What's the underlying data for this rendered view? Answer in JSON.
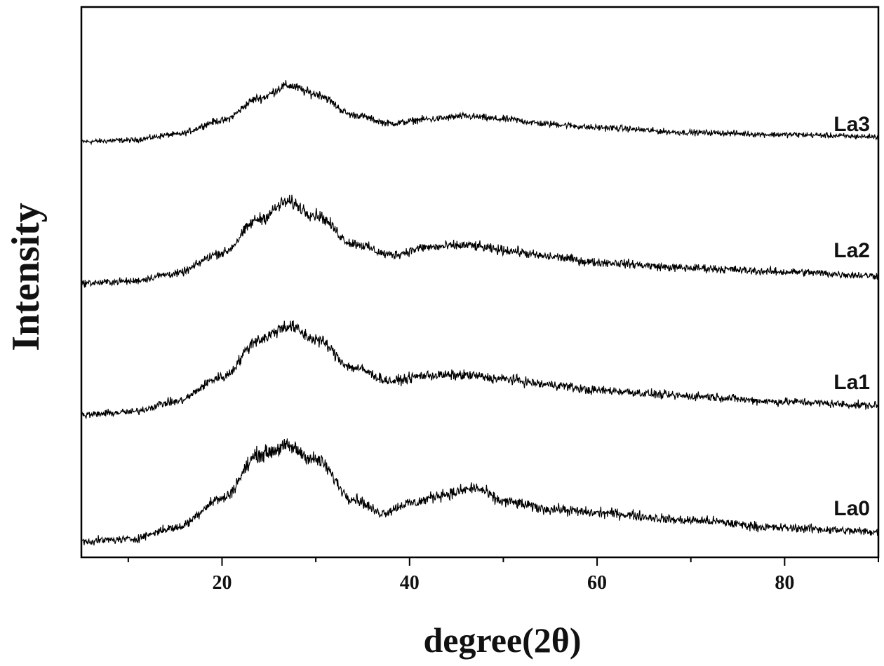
{
  "chart_data": {
    "type": "line",
    "title": "",
    "xlabel": "degree(2θ)",
    "ylabel": "Intensity",
    "xlim": [
      5,
      90
    ],
    "x_ticks_major": [
      20,
      40,
      60,
      80
    ],
    "x_ticks_minor": [
      10,
      30,
      50,
      70,
      90
    ],
    "y_ticks": false,
    "grid": false,
    "legend": "inline-right",
    "line_color": "#000000",
    "series": [
      {
        "name": "La3",
        "profile": [
          [
            5,
            0.0
          ],
          [
            10,
            0.02
          ],
          [
            15,
            0.1
          ],
          [
            20,
            0.3
          ],
          [
            24,
            0.62
          ],
          [
            27,
            0.8
          ],
          [
            30,
            0.68
          ],
          [
            34,
            0.38
          ],
          [
            38,
            0.26
          ],
          [
            42,
            0.32
          ],
          [
            46,
            0.36
          ],
          [
            50,
            0.32
          ],
          [
            55,
            0.25
          ],
          [
            60,
            0.2
          ],
          [
            70,
            0.13
          ],
          [
            80,
            0.1
          ],
          [
            90,
            0.07
          ]
        ],
        "noise": 0.1
      },
      {
        "name": "La2",
        "profile": [
          [
            5,
            0.0
          ],
          [
            10,
            0.02
          ],
          [
            15,
            0.1
          ],
          [
            20,
            0.32
          ],
          [
            24,
            0.68
          ],
          [
            27,
            0.86
          ],
          [
            30,
            0.72
          ],
          [
            34,
            0.42
          ],
          [
            38,
            0.3
          ],
          [
            42,
            0.38
          ],
          [
            46,
            0.4
          ],
          [
            50,
            0.35
          ],
          [
            55,
            0.28
          ],
          [
            60,
            0.22
          ],
          [
            70,
            0.16
          ],
          [
            80,
            0.12
          ],
          [
            90,
            0.08
          ]
        ],
        "noise": 0.1
      },
      {
        "name": "La1",
        "profile": [
          [
            5,
            0.0
          ],
          [
            10,
            0.03
          ],
          [
            15,
            0.14
          ],
          [
            20,
            0.4
          ],
          [
            24,
            0.8
          ],
          [
            27,
            0.94
          ],
          [
            30,
            0.8
          ],
          [
            34,
            0.5
          ],
          [
            38,
            0.36
          ],
          [
            42,
            0.42
          ],
          [
            46,
            0.42
          ],
          [
            50,
            0.38
          ],
          [
            55,
            0.32
          ],
          [
            60,
            0.26
          ],
          [
            70,
            0.2
          ],
          [
            80,
            0.14
          ],
          [
            90,
            0.1
          ]
        ],
        "noise": 0.1
      },
      {
        "name": "La0",
        "profile": [
          [
            5,
            0.0
          ],
          [
            10,
            0.02
          ],
          [
            15,
            0.14
          ],
          [
            20,
            0.45
          ],
          [
            24,
            0.92
          ],
          [
            27,
            1.0
          ],
          [
            30,
            0.86
          ],
          [
            34,
            0.45
          ],
          [
            37,
            0.3
          ],
          [
            40,
            0.4
          ],
          [
            44,
            0.5
          ],
          [
            47,
            0.56
          ],
          [
            50,
            0.42
          ],
          [
            55,
            0.34
          ],
          [
            60,
            0.3
          ],
          [
            70,
            0.22
          ],
          [
            80,
            0.14
          ],
          [
            90,
            0.1
          ]
        ],
        "noise": 0.11
      }
    ]
  }
}
